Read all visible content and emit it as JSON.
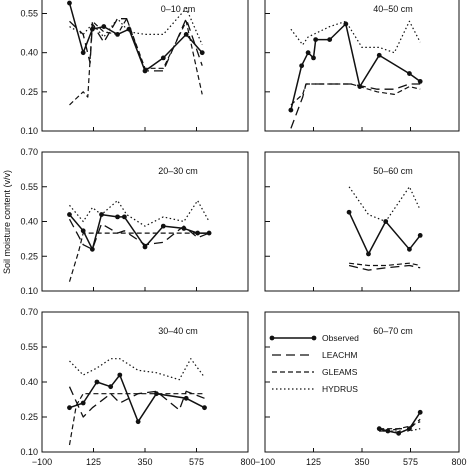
{
  "chart_data": {
    "type": "line",
    "ylabel": "Soil moisture content (v/v)",
    "xlim": [
      -100,
      800
    ],
    "xticks": [
      -100,
      125,
      350,
      575,
      800
    ],
    "left_yticks": [
      [
        "0.10",
        "0.25",
        "0.40",
        "0.55"
      ],
      [
        "0.10",
        "0.25",
        "0.40",
        "0.55",
        "0.70"
      ],
      [
        "0.10",
        "0.25",
        "0.40",
        "0.55",
        "0.70"
      ]
    ],
    "legend": {
      "placement": "inside panel 60-70 cm, upper area",
      "entries": [
        {
          "name": "Observed",
          "style": "solid-dots"
        },
        {
          "name": "LEACHM",
          "style": "long-dash"
        },
        {
          "name": "GLEAMS",
          "style": "dash"
        },
        {
          "name": "HYDRUS",
          "style": "dotted"
        }
      ]
    },
    "panels": [
      {
        "label": "0–10 cm",
        "observed": [
          [
            20,
            0.59
          ],
          [
            80,
            0.4
          ],
          [
            120,
            0.49
          ],
          [
            170,
            0.5
          ],
          [
            230,
            0.47
          ],
          [
            280,
            0.49
          ],
          [
            350,
            0.33
          ],
          [
            430,
            0.38
          ],
          [
            530,
            0.47
          ],
          [
            600,
            0.4
          ]
        ],
        "leachm": [
          [
            20,
            0.52
          ],
          [
            80,
            0.47
          ],
          [
            110,
            0.36
          ],
          [
            120,
            0.51
          ],
          [
            170,
            0.44
          ],
          [
            230,
            0.53
          ],
          [
            270,
            0.53
          ],
          [
            350,
            0.33
          ],
          [
            430,
            0.33
          ],
          [
            530,
            0.53
          ],
          [
            600,
            0.35
          ]
        ],
        "gleams": [
          [
            20,
            0.2
          ],
          [
            80,
            0.25
          ],
          [
            100,
            0.23
          ],
          [
            120,
            0.52
          ],
          [
            170,
            0.48
          ],
          [
            230,
            0.47
          ],
          [
            270,
            0.53
          ],
          [
            350,
            0.34
          ],
          [
            430,
            0.34
          ],
          [
            530,
            0.52
          ],
          [
            600,
            0.24
          ]
        ],
        "hydrus": [
          [
            20,
            0.5
          ],
          [
            80,
            0.47
          ],
          [
            120,
            0.51
          ],
          [
            170,
            0.46
          ],
          [
            230,
            0.53
          ],
          [
            280,
            0.48
          ],
          [
            350,
            0.47
          ],
          [
            430,
            0.47
          ],
          [
            530,
            0.57
          ],
          [
            600,
            0.43
          ]
        ]
      },
      {
        "label": "40–50 cm",
        "observed": [
          [
            20,
            0.18
          ],
          [
            70,
            0.35
          ],
          [
            100,
            0.4
          ],
          [
            125,
            0.38
          ],
          [
            135,
            0.45
          ],
          [
            200,
            0.45
          ],
          [
            275,
            0.51
          ],
          [
            340,
            0.27
          ],
          [
            430,
            0.39
          ],
          [
            570,
            0.32
          ],
          [
            620,
            0.29
          ]
        ],
        "leachm": [
          [
            20,
            0.11
          ],
          [
            75,
            0.23
          ],
          [
            90,
            0.28
          ],
          [
            200,
            0.28
          ],
          [
            300,
            0.28
          ],
          [
            420,
            0.26
          ],
          [
            500,
            0.26
          ],
          [
            570,
            0.28
          ],
          [
            620,
            0.28
          ]
        ],
        "gleams": [
          [
            20,
            0.2
          ],
          [
            75,
            0.24
          ],
          [
            90,
            0.28
          ],
          [
            200,
            0.28
          ],
          [
            300,
            0.28
          ],
          [
            420,
            0.25
          ],
          [
            500,
            0.24
          ],
          [
            570,
            0.27
          ],
          [
            620,
            0.26
          ]
        ],
        "hydrus": [
          [
            20,
            0.49
          ],
          [
            75,
            0.43
          ],
          [
            100,
            0.46
          ],
          [
            200,
            0.5
          ],
          [
            275,
            0.52
          ],
          [
            350,
            0.42
          ],
          [
            430,
            0.42
          ],
          [
            500,
            0.4
          ],
          [
            570,
            0.52
          ],
          [
            620,
            0.44
          ]
        ]
      },
      {
        "label": "20–30 cm",
        "observed": [
          [
            20,
            0.43
          ],
          [
            80,
            0.36
          ],
          [
            120,
            0.28
          ],
          [
            160,
            0.43
          ],
          [
            230,
            0.42
          ],
          [
            260,
            0.42
          ],
          [
            350,
            0.29
          ],
          [
            430,
            0.38
          ],
          [
            520,
            0.37
          ],
          [
            580,
            0.35
          ],
          [
            630,
            0.35
          ]
        ],
        "leachm": [
          [
            20,
            0.41
          ],
          [
            80,
            0.3
          ],
          [
            120,
            0.28
          ],
          [
            160,
            0.39
          ],
          [
            230,
            0.35
          ],
          [
            260,
            0.36
          ],
          [
            350,
            0.3
          ],
          [
            430,
            0.31
          ],
          [
            520,
            0.38
          ],
          [
            580,
            0.33
          ],
          [
            630,
            0.35
          ]
        ],
        "gleams": [
          [
            20,
            0.14
          ],
          [
            60,
            0.27
          ],
          [
            80,
            0.35
          ],
          [
            120,
            0.35
          ],
          [
            200,
            0.35
          ],
          [
            300,
            0.35
          ],
          [
            430,
            0.35
          ],
          [
            520,
            0.35
          ],
          [
            630,
            0.35
          ]
        ],
        "hydrus": [
          [
            20,
            0.47
          ],
          [
            80,
            0.4
          ],
          [
            120,
            0.46
          ],
          [
            160,
            0.43
          ],
          [
            230,
            0.49
          ],
          [
            270,
            0.43
          ],
          [
            350,
            0.38
          ],
          [
            430,
            0.42
          ],
          [
            520,
            0.4
          ],
          [
            580,
            0.49
          ],
          [
            630,
            0.4
          ]
        ]
      },
      {
        "label": "50–60 cm",
        "observed": [
          [
            290,
            0.44
          ],
          [
            380,
            0.26
          ],
          [
            460,
            0.4
          ],
          [
            570,
            0.28
          ],
          [
            620,
            0.34
          ]
        ],
        "leachm": [
          [
            290,
            0.21
          ],
          [
            380,
            0.19
          ],
          [
            460,
            0.2
          ],
          [
            570,
            0.21
          ],
          [
            620,
            0.2
          ]
        ],
        "gleams": [
          [
            290,
            0.22
          ],
          [
            380,
            0.21
          ],
          [
            460,
            0.21
          ],
          [
            570,
            0.22
          ],
          [
            620,
            0.21
          ]
        ],
        "hydrus": [
          [
            290,
            0.55
          ],
          [
            380,
            0.43
          ],
          [
            460,
            0.4
          ],
          [
            570,
            0.55
          ],
          [
            620,
            0.45
          ]
        ]
      },
      {
        "label": "30–40 cm",
        "observed": [
          [
            20,
            0.29
          ],
          [
            80,
            0.31
          ],
          [
            140,
            0.4
          ],
          [
            200,
            0.38
          ],
          [
            240,
            0.43
          ],
          [
            320,
            0.23
          ],
          [
            400,
            0.35
          ],
          [
            530,
            0.33
          ],
          [
            610,
            0.29
          ]
        ],
        "leachm": [
          [
            20,
            0.38
          ],
          [
            80,
            0.25
          ],
          [
            120,
            0.29
          ],
          [
            200,
            0.35
          ],
          [
            240,
            0.31
          ],
          [
            320,
            0.35
          ],
          [
            400,
            0.36
          ],
          [
            500,
            0.28
          ],
          [
            530,
            0.36
          ],
          [
            610,
            0.33
          ]
        ],
        "gleams": [
          [
            20,
            0.13
          ],
          [
            50,
            0.3
          ],
          [
            80,
            0.35
          ],
          [
            200,
            0.35
          ],
          [
            300,
            0.35
          ],
          [
            430,
            0.35
          ],
          [
            530,
            0.35
          ],
          [
            610,
            0.35
          ]
        ],
        "hydrus": [
          [
            20,
            0.49
          ],
          [
            80,
            0.43
          ],
          [
            140,
            0.46
          ],
          [
            200,
            0.5
          ],
          [
            240,
            0.5
          ],
          [
            320,
            0.45
          ],
          [
            400,
            0.44
          ],
          [
            500,
            0.41
          ],
          [
            550,
            0.5
          ],
          [
            610,
            0.42
          ]
        ]
      },
      {
        "label": "60–70 cm",
        "observed": [
          [
            430,
            0.2
          ],
          [
            470,
            0.19
          ],
          [
            520,
            0.18
          ],
          [
            570,
            0.2
          ],
          [
            620,
            0.27
          ]
        ],
        "leachm": [
          [
            430,
            0.19
          ],
          [
            470,
            0.19
          ],
          [
            520,
            0.2
          ],
          [
            570,
            0.2
          ],
          [
            620,
            0.24
          ]
        ],
        "gleams": [
          [
            430,
            0.2
          ],
          [
            470,
            0.2
          ],
          [
            520,
            0.2
          ],
          [
            570,
            0.21
          ],
          [
            620,
            0.23
          ]
        ],
        "hydrus": [
          [
            430,
            0.19
          ],
          [
            470,
            0.19
          ],
          [
            520,
            0.19
          ],
          [
            570,
            0.19
          ],
          [
            620,
            0.2
          ]
        ]
      }
    ]
  }
}
